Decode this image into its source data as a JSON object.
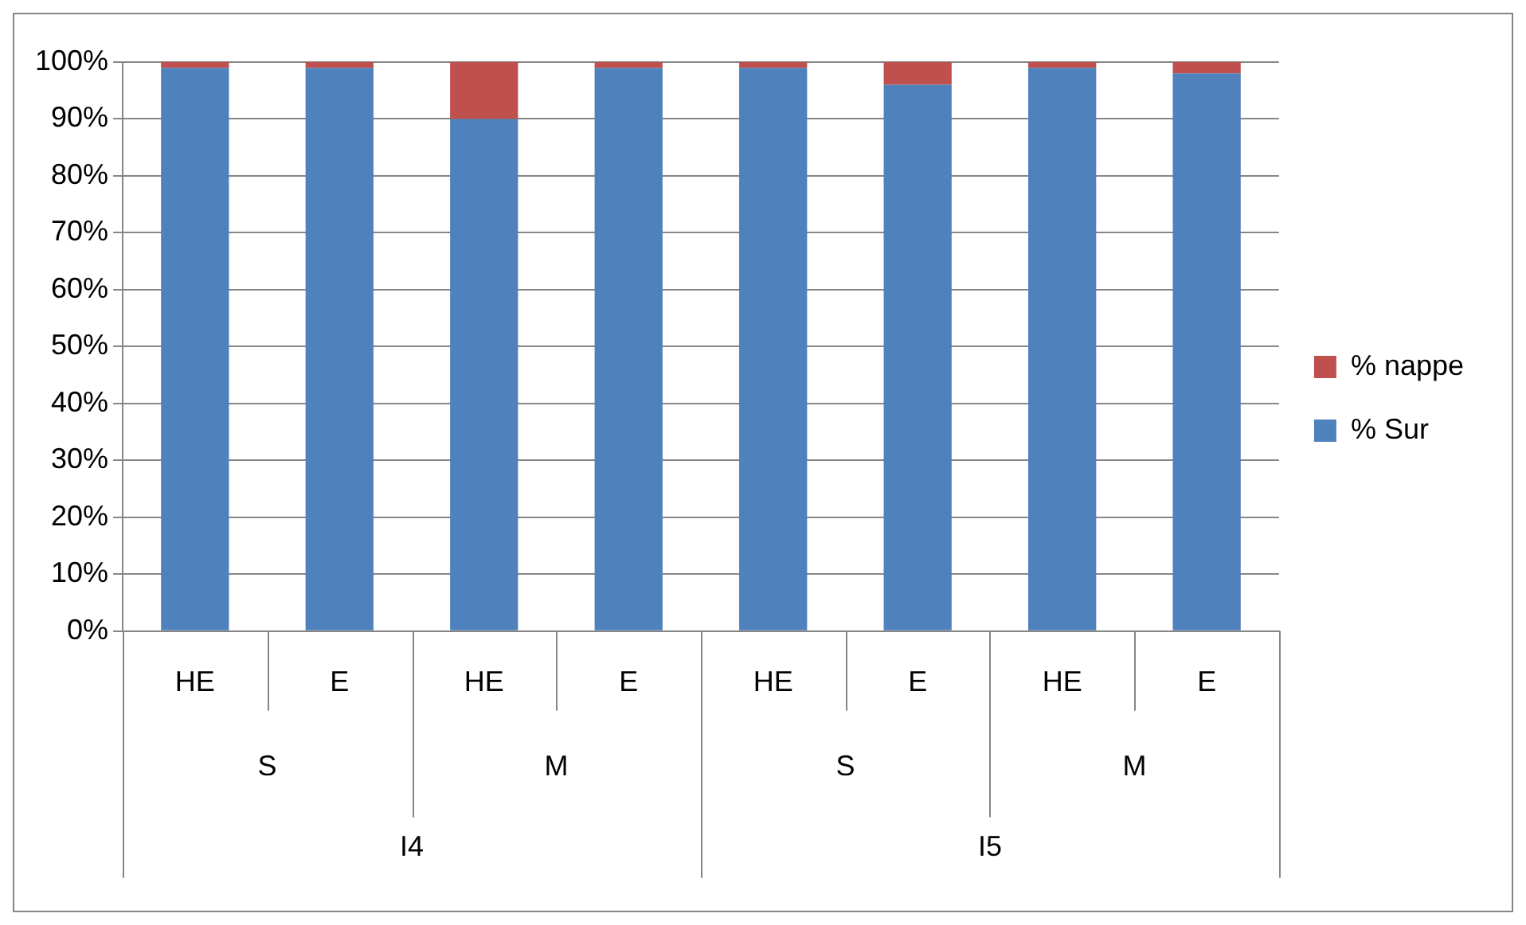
{
  "chart_data": {
    "type": "bar",
    "stacked": true,
    "categories": [
      "HE",
      "E",
      "HE",
      "E",
      "HE",
      "E",
      "HE",
      "E"
    ],
    "series": [
      {
        "name": "% Sur",
        "color": "#4f81bd",
        "values": [
          99,
          99,
          90,
          99,
          99,
          96,
          99,
          98
        ]
      },
      {
        "name": "% nappe",
        "color": "#c0504d",
        "values": [
          1,
          1,
          10,
          1,
          1,
          4,
          1,
          2
        ]
      }
    ],
    "ylim": [
      0,
      100
    ],
    "yticks": [
      {
        "value": 0,
        "label": "0%"
      },
      {
        "value": 10,
        "label": "10%"
      },
      {
        "value": 20,
        "label": "20%"
      },
      {
        "value": 30,
        "label": "30%"
      },
      {
        "value": 40,
        "label": "40%"
      },
      {
        "value": 50,
        "label": "50%"
      },
      {
        "value": 60,
        "label": "60%"
      },
      {
        "value": 70,
        "label": "70%"
      },
      {
        "value": 80,
        "label": "80%"
      },
      {
        "value": 90,
        "label": "90%"
      },
      {
        "value": 100,
        "label": "100%"
      }
    ],
    "grid": "y",
    "legend": "right",
    "annotations": [
      "S",
      "M",
      "S",
      "M",
      "I4",
      "I5"
    ]
  }
}
